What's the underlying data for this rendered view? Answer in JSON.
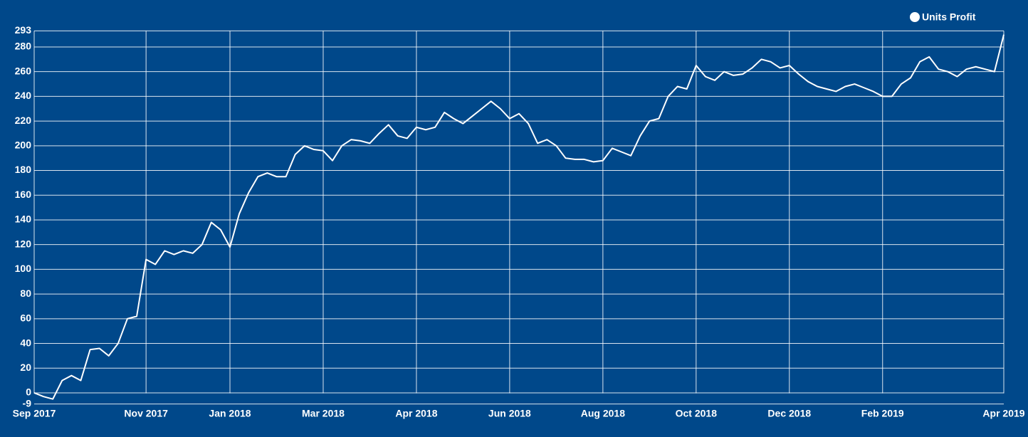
{
  "chart_data": {
    "type": "line",
    "categories": [
      "Sep 2017",
      null,
      null,
      null,
      null,
      null,
      null,
      null,
      null,
      null,
      null,
      null,
      "Nov 2017",
      null,
      null,
      null,
      null,
      null,
      null,
      null,
      null,
      "Jan 2018",
      null,
      null,
      null,
      null,
      null,
      null,
      null,
      null,
      null,
      "Mar 2018",
      null,
      null,
      null,
      null,
      null,
      null,
      null,
      null,
      null,
      "Apr 2018",
      null,
      null,
      null,
      null,
      null,
      null,
      null,
      null,
      null,
      "Jun 2018",
      null,
      null,
      null,
      null,
      null,
      null,
      null,
      null,
      null,
      "Aug 2018",
      null,
      null,
      null,
      null,
      null,
      null,
      null,
      null,
      null,
      "Oct 2018",
      null,
      null,
      null,
      null,
      null,
      null,
      null,
      null,
      null,
      "Dec 2018",
      null,
      null,
      null,
      null,
      null,
      null,
      null,
      null,
      null,
      "Feb 2019",
      null,
      null,
      null,
      null,
      null,
      null,
      null,
      null,
      null,
      null,
      null,
      null,
      "Apr 2019"
    ],
    "series": [
      {
        "name": "Units Profit",
        "color": "#ffffff",
        "values": [
          0,
          -3,
          -5,
          10,
          14,
          10,
          35,
          36,
          30,
          40,
          60,
          62,
          108,
          104,
          115,
          112,
          115,
          113,
          120,
          138,
          132,
          118,
          145,
          162,
          175,
          178,
          175,
          175,
          193,
          200,
          197,
          196,
          188,
          200,
          205,
          204,
          202,
          210,
          217,
          208,
          206,
          215,
          213,
          215,
          227,
          222,
          218,
          224,
          230,
          236,
          230,
          222,
          226,
          218,
          202,
          205,
          200,
          190,
          189,
          189,
          187,
          188,
          198,
          195,
          192,
          208,
          220,
          222,
          240,
          248,
          246,
          265,
          256,
          253,
          260,
          257,
          258,
          263,
          270,
          268,
          263,
          265,
          258,
          252,
          248,
          246,
          244,
          248,
          250,
          247,
          244,
          240,
          240,
          250,
          255,
          268,
          272,
          262,
          260,
          256,
          262,
          264,
          262,
          260,
          290
        ]
      }
    ],
    "ylim": [
      -9,
      293
    ],
    "yticks": [
      -9,
      0,
      20,
      40,
      60,
      80,
      100,
      120,
      140,
      160,
      180,
      200,
      220,
      240,
      260,
      280,
      293
    ],
    "grid": true,
    "legend": "top-right"
  }
}
